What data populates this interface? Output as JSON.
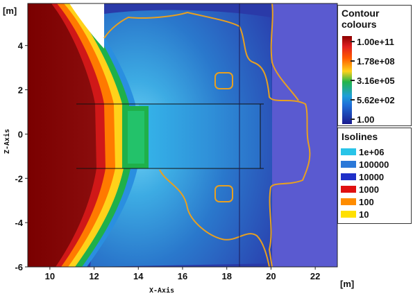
{
  "chart_data": {
    "type": "heatmap",
    "title": "",
    "xlabel": "X-Axis",
    "ylabel": "Z-Axis",
    "x_unit": "[m]",
    "y_unit": "[m]",
    "xlim": [
      9.0,
      23.0
    ],
    "ylim": [
      -6.0,
      5.9
    ],
    "x_ticks": [
      10,
      12,
      14,
      16,
      18,
      20,
      22
    ],
    "y_ticks": [
      4,
      2,
      0,
      -2,
      -4,
      -6
    ],
    "colorscale": "log",
    "legend": {
      "placement": "right",
      "contour_title": "Contour colours",
      "contour_levels": [
        {
          "label": "1.00e+11",
          "value": 100000000000.0,
          "color": "#8b0000"
        },
        {
          "label": "1.78e+08",
          "value": 178000000.0,
          "color": "#ff5a00"
        },
        {
          "label": "3.16e+05",
          "value": 316000.0,
          "color": "#22b54a"
        },
        {
          "label": "5.62e+02",
          "value": 562.0,
          "color": "#1e9fd8"
        },
        {
          "label": "1.00",
          "value": 1.0,
          "color": "#1a1a8e"
        }
      ],
      "isolines_title": "Isolines",
      "isolines": [
        {
          "label": "1e+06",
          "value": 1000000.0,
          "color": "#29c4e8"
        },
        {
          "label": "100000",
          "value": 100000.0,
          "color": "#2a78d8"
        },
        {
          "label": "10000",
          "value": 10000.0,
          "color": "#1f2fc8"
        },
        {
          "label": "1000",
          "value": 1000.0,
          "color": "#e01010"
        },
        {
          "label": "100",
          "value": 100,
          "color": "#ff8c00"
        },
        {
          "label": "10",
          "value": 10,
          "color": "#ffe000"
        }
      ]
    }
  }
}
